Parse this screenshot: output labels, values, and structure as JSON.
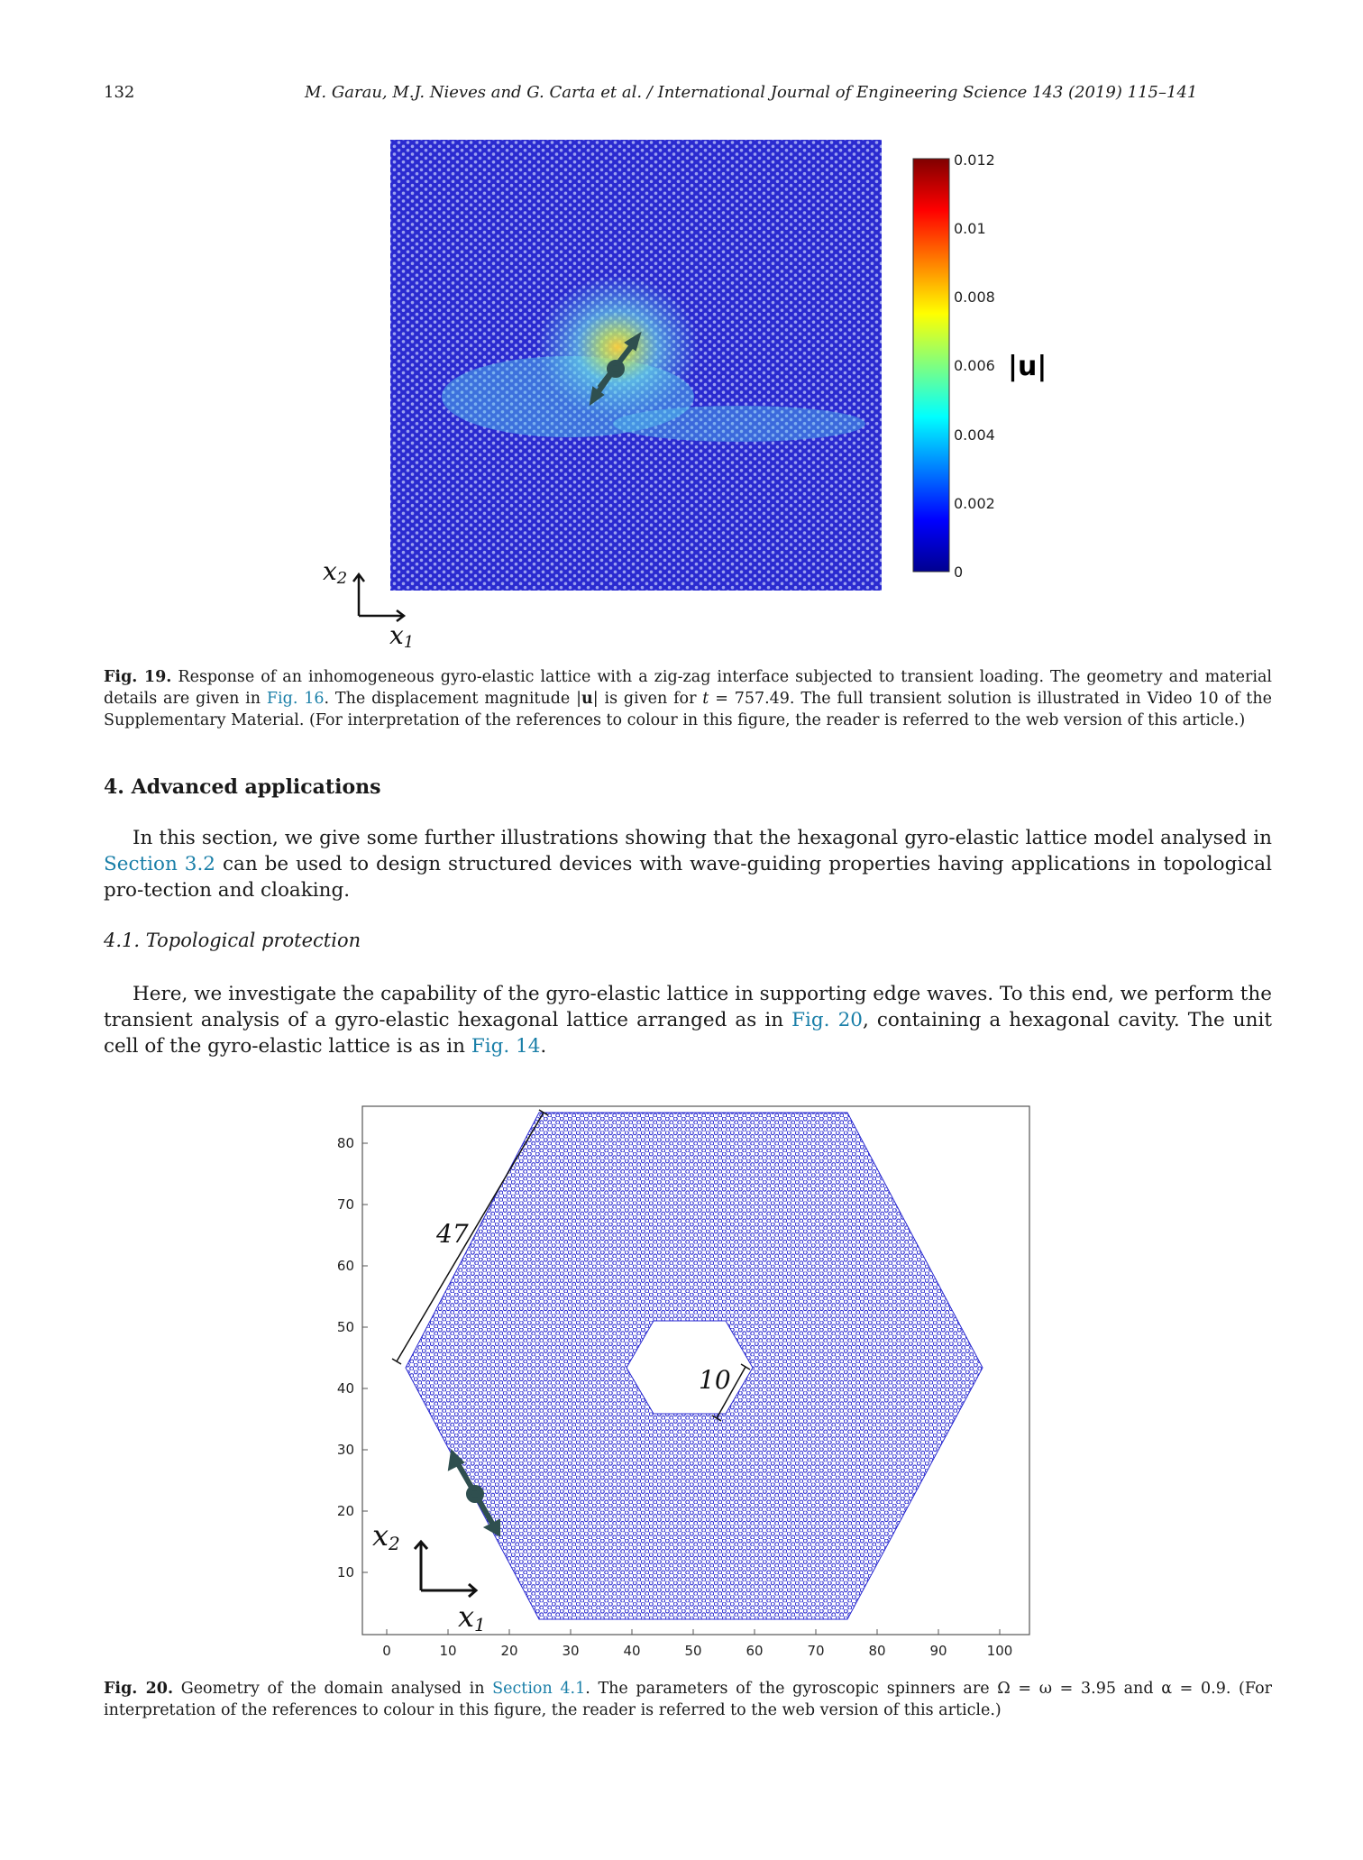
{
  "header": {
    "page_number": "132",
    "running_title": "M. Garau, M.J. Nieves and G. Carta et al. / International Journal of Engineering Science 143 (2019) 115–141"
  },
  "fig19": {
    "colorbar_ticks": [
      "0.012",
      "0.01",
      "0.008",
      "0.006",
      "0.004",
      "0.002",
      "0"
    ],
    "colorbar_label": "|u|",
    "axis_x": "x",
    "axis_x_sub": "1",
    "axis_y": "x",
    "axis_y_sub": "2",
    "caption_label": "Fig. 19.",
    "caption_1": "Response of an inhomogeneous gyro-elastic lattice with a zig-zag interface subjected to transient loading. The geometry and material details are given in",
    "caption_link_1": "Fig. 16",
    "caption_2": ". The displacement magnitude |",
    "caption_bold_u": "u",
    "caption_3": "| is given for",
    "caption_t": "t",
    "caption_4": "= 757.49. The full transient solution is illustrated in Video 10 of the Supplementary Material. (For interpretation of the references to colour in this figure, the reader is referred to the web version of this article.)"
  },
  "section4": {
    "heading": "4. Advanced applications",
    "para_1a": "In this section, we give some further illustrations showing that the hexagonal gyro-elastic lattice model analysed in",
    "para_1_link": "Section 3.2",
    "para_1b": "can be used to design structured devices with wave-guiding properties having applications in topological pro-tection and cloaking.",
    "subsection": "4.1. Topological protection",
    "para_2a": "Here, we investigate the capability of the gyro-elastic lattice in supporting edge waves. To this end, we perform the transient analysis of a gyro-elastic hexagonal lattice arranged as in",
    "para_2_link_1": "Fig. 20",
    "para_2b": ", containing a hexagonal cavity. The unit cell of the gyro-elastic lattice is as in",
    "para_2_link_2": "Fig. 14",
    "para_2c": "."
  },
  "fig20": {
    "x_ticks": [
      "0",
      "10",
      "20",
      "30",
      "40",
      "50",
      "60",
      "70",
      "80",
      "90",
      "100"
    ],
    "y_ticks": [
      "10",
      "20",
      "30",
      "40",
      "50",
      "60",
      "70",
      "80"
    ],
    "dim_outer": "47",
    "dim_inner": "10",
    "axis_x": "x",
    "axis_x_sub": "1",
    "axis_y": "x",
    "axis_y_sub": "2",
    "caption_label": "Fig. 20.",
    "caption_1": "Geometry of the domain analysed in",
    "caption_link_1": "Section 4.1",
    "caption_2": ". The parameters of the gyroscopic spinners are Ω = ω = 3.95 and α = 0.9. (For interpretation of the references to colour in this figure, the reader is referred to the web version of this article.)"
  },
  "colors": {
    "link": "#1a7fa8",
    "lattice": "#2a2ad0",
    "arrow": "#2f4f4f"
  }
}
